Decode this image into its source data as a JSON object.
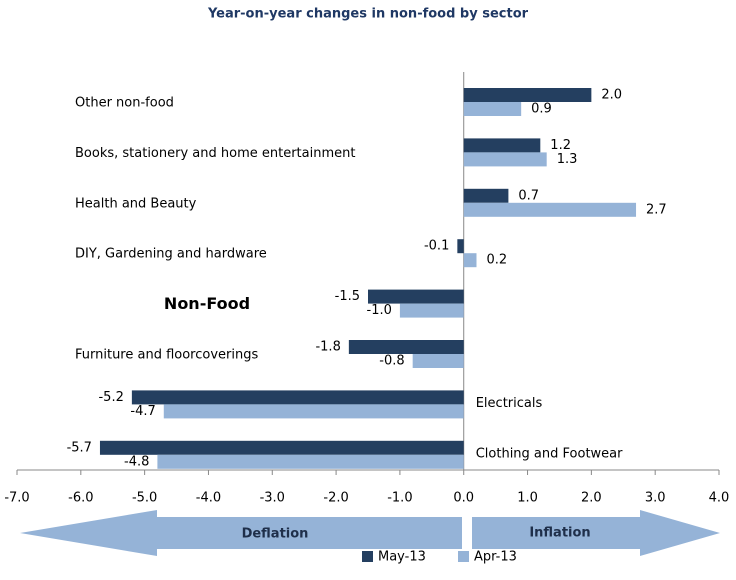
{
  "chart_data": {
    "type": "bar",
    "orientation": "horizontal",
    "title": "Year-on-year changes in non-food by sector",
    "categories": [
      "Other non-food",
      "Books, stationery and home entertainment",
      "Health and Beauty",
      "DIY, Gardening and hardware",
      "Non-Food",
      "Furniture and floorcoverings",
      "Electricals",
      "Clothing and Footwear"
    ],
    "series": [
      {
        "name": "May-13",
        "color": "#243f60",
        "values": [
          2.0,
          1.2,
          0.7,
          -0.1,
          -1.5,
          -1.8,
          -5.2,
          -5.7
        ],
        "value_labels": [
          "2.0",
          "1.2",
          "0.7",
          "-0.1",
          "-1.5",
          "-1.8",
          "-5.2",
          "-5.7"
        ]
      },
      {
        "name": "Apr-13",
        "color": "#95b3d7",
        "values": [
          0.9,
          1.3,
          2.7,
          0.2,
          -1.0,
          -0.8,
          -4.7,
          -4.8
        ],
        "value_labels": [
          "0.9",
          "1.3",
          "2.7",
          "0.2",
          "-1.0",
          "-0.8",
          "-4.7",
          "-4.8"
        ]
      }
    ],
    "xlim": [
      -7.0,
      4.0
    ],
    "xticks": [
      {
        "value": -7,
        "label": "-7.0"
      },
      {
        "value": -6,
        "label": "-6.0"
      },
      {
        "value": -5,
        "label": "-5.0"
      },
      {
        "value": -4,
        "label": "-4.0"
      },
      {
        "value": -3,
        "label": "-3.0"
      },
      {
        "value": -2,
        "label": "-2.0"
      },
      {
        "value": -1,
        "label": "-1.0"
      },
      {
        "value": 0,
        "label": "0.0"
      },
      {
        "value": 1,
        "label": "1.0"
      },
      {
        "value": 2,
        "label": "2.0"
      },
      {
        "value": 3,
        "label": "3.0"
      },
      {
        "value": 4,
        "label": "4.0"
      }
    ],
    "annotations": [
      "Deflation",
      "Inflation"
    ],
    "legend": "bottom"
  }
}
